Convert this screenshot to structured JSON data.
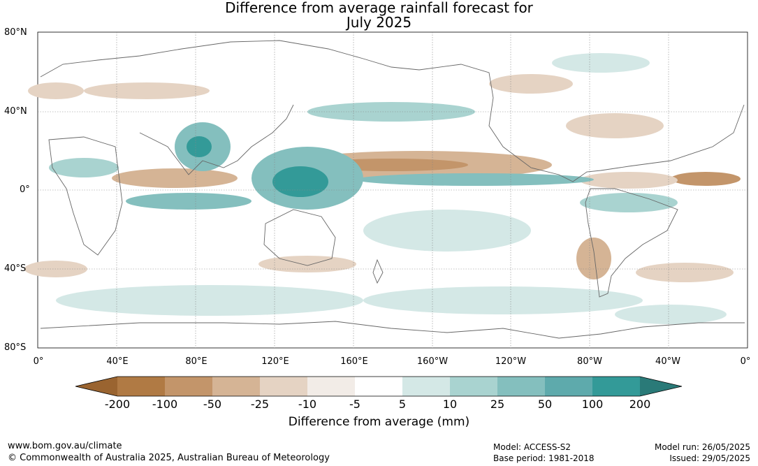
{
  "title_line1": "Difference from average rainfall forecast for",
  "title_line2": "July 2025",
  "map": {
    "lat_labels": [
      "80°N",
      "40°N",
      "0°",
      "40°S",
      "80°S"
    ],
    "lon_labels": [
      "0°",
      "40°E",
      "80°E",
      "120°E",
      "160°E",
      "160°W",
      "120°W",
      "80°W",
      "40°W",
      "0°"
    ]
  },
  "legend": {
    "ticks": [
      "-200",
      "-100",
      "-50",
      "-25",
      "-10",
      "-5",
      "5",
      "10",
      "25",
      "50",
      "100",
      "200"
    ],
    "colors": [
      "#9a6430",
      "#b07a44",
      "#c3956a",
      "#d5b495",
      "#e5d3c3",
      "#f2ece7",
      "#ffffff",
      "#d4e8e6",
      "#a9d3d0",
      "#84bfbe",
      "#5eaaac",
      "#339a98",
      "#2a7a78"
    ],
    "caption": "Difference from average (mm)"
  },
  "footer": {
    "website": "www.bom.gov.au/climate",
    "copyright": "© Commonwealth of Australia 2025, Australian Bureau of Meteorology",
    "model": "Model: ACCESS-S2",
    "base_period": "Base period: 1981-2018",
    "model_run": "Model run: 26/05/2025",
    "issued": "Issued: 29/05/2025"
  }
}
